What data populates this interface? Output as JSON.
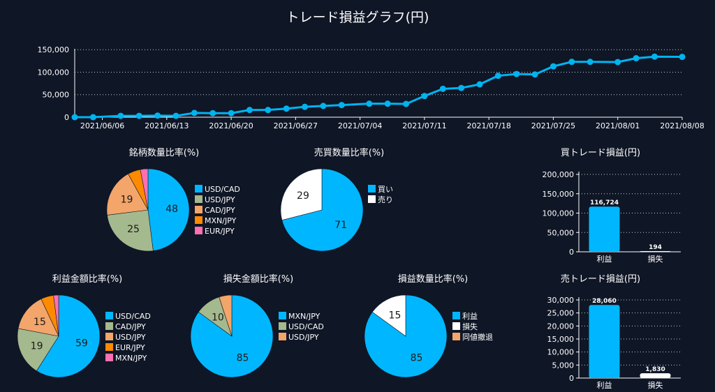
{
  "page": {
    "title": "トレード損益グラフ(円)"
  },
  "colors": {
    "background": "#0f1626",
    "line": "#00b4f0",
    "cyan": "#00b7ff",
    "sage": "#a5b98e",
    "peach": "#f3a56a",
    "orange": "#ff8a00",
    "pink": "#ff6fb1",
    "white": "#ffffff"
  },
  "chart_data": [
    {
      "id": "cumulative",
      "type": "line",
      "title": "トレード損益グラフ(円)",
      "x": [
        "2021/06/03",
        "2021/06/05",
        "2021/06/08",
        "2021/06/10",
        "2021/06/12",
        "2021/06/14",
        "2021/06/16",
        "2021/06/18",
        "2021/06/20",
        "2021/06/22",
        "2021/06/24",
        "2021/06/26",
        "2021/06/28",
        "2021/06/30",
        "2021/07/02",
        "2021/07/05",
        "2021/07/07",
        "2021/07/09",
        "2021/07/11",
        "2021/07/13",
        "2021/07/15",
        "2021/07/17",
        "2021/07/19",
        "2021/07/21",
        "2021/07/23",
        "2021/07/25",
        "2021/07/27",
        "2021/07/29",
        "2021/08/01",
        "2021/08/03",
        "2021/08/05",
        "2021/08/08"
      ],
      "values": [
        0,
        0,
        3000,
        3000,
        3500,
        3000,
        9500,
        9000,
        9000,
        16000,
        16000,
        19000,
        23000,
        25000,
        27000,
        30000,
        30000,
        29500,
        47000,
        63000,
        65000,
        73000,
        92000,
        96000,
        95000,
        113000,
        123000,
        123000,
        122500,
        131000,
        134500,
        134000
      ],
      "ylim": [
        0,
        155000
      ],
      "yticks": [
        0,
        50000,
        100000,
        150000
      ],
      "ytick_labels": [
        "0",
        "50,000",
        "100,000",
        "150,000"
      ],
      "xtick_labels": [
        "2021/06/06",
        "2021/06/13",
        "2021/06/20",
        "2021/06/27",
        "2021/07/04",
        "2021/07/11",
        "2021/07/18",
        "2021/07/25",
        "2021/08/01",
        "2021/08/08"
      ],
      "grid": true
    },
    {
      "id": "pie-symbol-count",
      "type": "pie",
      "title": "銘柄数量比率(%)",
      "slices": [
        {
          "name": "USD/CAD",
          "value": 48,
          "label": "48",
          "color": "#00b7ff"
        },
        {
          "name": "USD/JPY",
          "value": 25,
          "label": "25",
          "color": "#a5b98e"
        },
        {
          "name": "CAD/JPY",
          "value": 19,
          "label": "19",
          "color": "#f3a56a"
        },
        {
          "name": "MXN/JPY",
          "value": 5,
          "label": "",
          "color": "#ff8a00"
        },
        {
          "name": "EUR/JPY",
          "value": 3,
          "label": "",
          "color": "#ff6fb1"
        }
      ],
      "legend": [
        "USD/CAD",
        "USD/JPY",
        "CAD/JPY",
        "MXN/JPY",
        "EUR/JPY"
      ]
    },
    {
      "id": "pie-buy-sell",
      "type": "pie",
      "title": "売買数量比率(%)",
      "slices": [
        {
          "name": "買い",
          "value": 71,
          "label": "71",
          "color": "#00b7ff"
        },
        {
          "name": "売り",
          "value": 29,
          "label": "29",
          "color": "#ffffff"
        }
      ],
      "legend": [
        "買い",
        "売り"
      ]
    },
    {
      "id": "bar-buy",
      "type": "bar",
      "title": "買トレード損益(円)",
      "categories": [
        "利益",
        "損失"
      ],
      "values": [
        116724,
        194
      ],
      "value_labels": [
        "116,724",
        "194"
      ],
      "colors": [
        "#00b7ff",
        "#ffffff"
      ],
      "ylim": [
        0,
        200000
      ],
      "yticks": [
        0,
        50000,
        100000,
        150000,
        200000
      ],
      "ytick_labels": [
        "0",
        "50,000",
        "100,000",
        "150,000",
        "200,000"
      ],
      "grid": true
    },
    {
      "id": "pie-profit-amount",
      "type": "pie",
      "title": "利益金額比率(%)",
      "slices": [
        {
          "name": "USD/CAD",
          "value": 59,
          "label": "59",
          "color": "#00b7ff"
        },
        {
          "name": "CAD/JPY",
          "value": 19,
          "label": "19",
          "color": "#a5b98e"
        },
        {
          "name": "USD/JPY",
          "value": 15,
          "label": "15",
          "color": "#f3a56a"
        },
        {
          "name": "EUR/JPY",
          "value": 5,
          "label": "",
          "color": "#ff8a00"
        },
        {
          "name": "MXN/JPY",
          "value": 2,
          "label": "",
          "color": "#ff6fb1"
        }
      ],
      "legend": [
        "USD/CAD",
        "CAD/JPY",
        "USD/JPY",
        "EUR/JPY",
        "MXN/JPY"
      ]
    },
    {
      "id": "pie-loss-amount",
      "type": "pie",
      "title": "損失金額比率(%)",
      "slices": [
        {
          "name": "MXN/JPY",
          "value": 85,
          "label": "85",
          "color": "#00b7ff"
        },
        {
          "name": "USD/CAD",
          "value": 10,
          "label": "10",
          "color": "#a5b98e"
        },
        {
          "name": "USD/JPY",
          "value": 5,
          "label": "",
          "color": "#f3a56a"
        }
      ],
      "legend": [
        "MXN/JPY",
        "USD/CAD",
        "USD/JPY"
      ]
    },
    {
      "id": "pie-pl-count",
      "type": "pie",
      "title": "損益数量比率(%)",
      "slices": [
        {
          "name": "利益",
          "value": 85,
          "label": "85",
          "color": "#00b7ff"
        },
        {
          "name": "損失",
          "value": 15,
          "label": "15",
          "color": "#ffffff"
        },
        {
          "name": "同値撤退",
          "value": 0,
          "label": "",
          "color": "#f3a56a"
        }
      ],
      "legend": [
        "利益",
        "損失",
        "同値撤退"
      ]
    },
    {
      "id": "bar-sell",
      "type": "bar",
      "title": "売トレード損益(円)",
      "categories": [
        "利益",
        "損失"
      ],
      "values": [
        28060,
        1830
      ],
      "value_labels": [
        "28,060",
        "1,830"
      ],
      "colors": [
        "#00b7ff",
        "#ffffff"
      ],
      "ylim": [
        0,
        30000
      ],
      "yticks": [
        0,
        5000,
        10000,
        15000,
        20000,
        25000,
        30000
      ],
      "ytick_labels": [
        "0",
        "5,000",
        "10,000",
        "15,000",
        "20,000",
        "25,000",
        "30,000"
      ],
      "grid": true
    }
  ]
}
